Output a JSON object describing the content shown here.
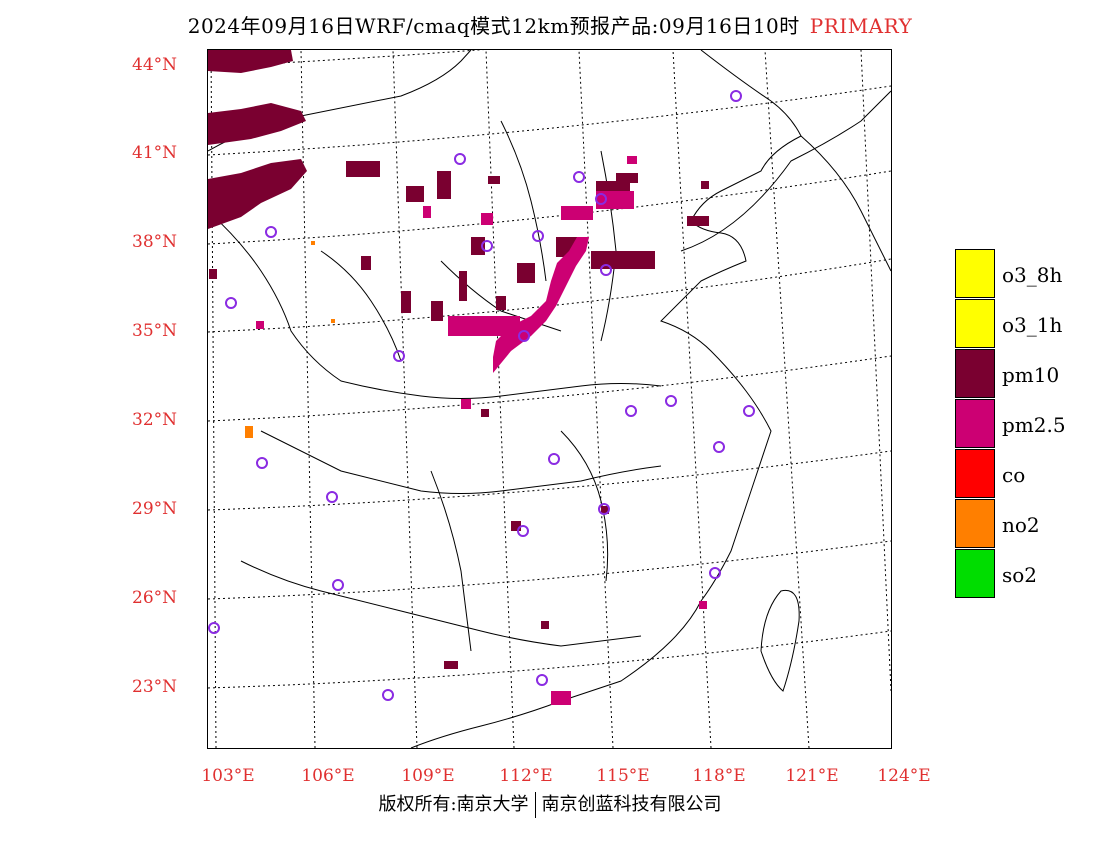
{
  "title": "2024年09月16日WRF/cmaq模式12km预报产品:09月16日10时",
  "title_tag": "PRIMARY",
  "colors": {
    "accent_red": "#e03030",
    "o3_8h": "#ffff00",
    "o3_1h": "#ffff00",
    "pm10": "#7a0030",
    "pm25": "#cc0073",
    "co": "#ff0000",
    "no2": "#ff7f00",
    "so2": "#00dd00",
    "station_circle": "#8a2be2"
  },
  "lat_ticks": [
    "44°N",
    "41°N",
    "38°N",
    "35°N",
    "32°N",
    "29°N",
    "26°N",
    "23°N"
  ],
  "lon_ticks": [
    "103°E",
    "106°E",
    "109°E",
    "112°E",
    "115°E",
    "118°E",
    "121°E",
    "124°E"
  ],
  "legend": [
    {
      "label": "o3_8h",
      "color": "#ffff00"
    },
    {
      "label": "o3_1h",
      "color": "#ffff00"
    },
    {
      "label": "pm10",
      "color": "#7a0030"
    },
    {
      "label": "pm2.5",
      "color": "#cc0073"
    },
    {
      "label": "co",
      "color": "#ff0000"
    },
    {
      "label": "no2",
      "color": "#ff7f00"
    },
    {
      "label": "so2",
      "color": "#00dd00"
    }
  ],
  "footer": {
    "left": "版权所有:南京大学",
    "right": "南京创蓝科技有限公司"
  }
}
